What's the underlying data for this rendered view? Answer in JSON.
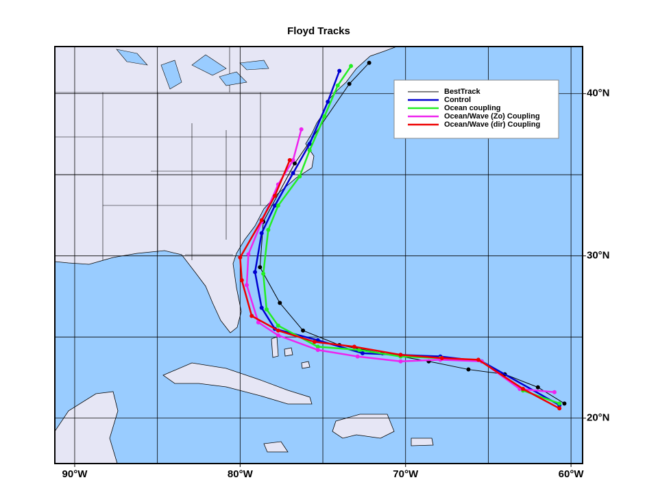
{
  "chart_data": {
    "type": "line",
    "title": "Floyd Tracks",
    "xlim": [
      -91.2,
      -59.3
    ],
    "ylim": [
      17.2,
      42.9
    ],
    "xticks": [
      {
        "value": -90,
        "label": "90°W"
      },
      {
        "value": -80,
        "label": "80°W"
      },
      {
        "value": -70,
        "label": "70°W"
      },
      {
        "value": -60,
        "label": "60°W"
      }
    ],
    "yticks": [
      {
        "value": 20,
        "label": "20°N"
      },
      {
        "value": 30,
        "label": "30°N"
      },
      {
        "value": 40,
        "label": "40°N"
      }
    ],
    "xgrid": [
      -90,
      -85,
      -80,
      -75,
      -70,
      -65,
      -60
    ],
    "ygrid": [
      20,
      25,
      30,
      35,
      40
    ],
    "grid": true,
    "legend": "upper right",
    "series": [
      {
        "name": "BestTrack",
        "color": "#000000",
        "x": [
          -60.4,
          -62.0,
          -64.0,
          -66.2,
          -68.6,
          -71.4,
          -74.0,
          -76.2,
          -77.6,
          -78.8,
          -78.6,
          -76.7,
          -73.4,
          -72.2
        ],
        "values": [
          20.9,
          21.9,
          22.7,
          23.0,
          23.5,
          24.0,
          24.5,
          25.4,
          27.1,
          29.3,
          32.1,
          35.7,
          40.6,
          41.9
        ]
      },
      {
        "name": "Control",
        "color": "#0000d0",
        "x": [
          -60.7,
          -65.4,
          -67.9,
          -70.3,
          -72.6,
          -75.3,
          -77.9,
          -78.7,
          -79.1,
          -78.7,
          -77.9,
          -76.8,
          -75.8,
          -74.7,
          -74.0
        ],
        "values": [
          20.8,
          23.5,
          23.8,
          23.9,
          24.0,
          24.8,
          25.5,
          26.8,
          29.0,
          31.4,
          33.1,
          35.1,
          36.9,
          39.5,
          41.4
        ]
      },
      {
        "name": "Ocean coupling",
        "color": "#22ee22",
        "x": [
          -60.7,
          -62.9,
          -65.4,
          -67.9,
          -70.3,
          -72.8,
          -75.3,
          -77.7,
          -78.4,
          -78.6,
          -78.3,
          -77.7,
          -76.4,
          -75.8,
          -74.9,
          -74.1,
          -73.3
        ],
        "values": [
          20.9,
          21.7,
          23.5,
          23.7,
          23.8,
          24.2,
          24.4,
          25.7,
          26.7,
          28.9,
          31.6,
          33.1,
          34.9,
          36.5,
          38.6,
          40.5,
          41.7
        ]
      },
      {
        "name": "Ocean/Wave (Zo) Coupling",
        "color": "#ee22ee",
        "x": [
          -61.0,
          -63.1,
          -65.4,
          -67.9,
          -70.3,
          -72.9,
          -75.3,
          -77.7,
          -78.9,
          -79.6,
          -79.5,
          -78.7,
          -77.7,
          -76.8,
          -76.3
        ],
        "values": [
          21.6,
          21.8,
          23.5,
          23.6,
          23.5,
          23.8,
          24.2,
          25.1,
          25.9,
          28.2,
          30.1,
          32.1,
          34.4,
          35.9,
          37.8
        ]
      },
      {
        "name": "Ocean/Wave (dir) Coupling",
        "color": "#ee0000",
        "x": [
          -60.7,
          -62.9,
          -65.6,
          -67.8,
          -70.3,
          -73.1,
          -75.5,
          -77.7,
          -79.3,
          -79.9,
          -80.0,
          -78.7,
          -77.9,
          -77.0
        ],
        "values": [
          20.6,
          21.8,
          23.6,
          23.7,
          23.9,
          24.4,
          24.7,
          25.4,
          26.3,
          28.5,
          29.9,
          32.2,
          33.7,
          35.9
        ]
      }
    ]
  }
}
